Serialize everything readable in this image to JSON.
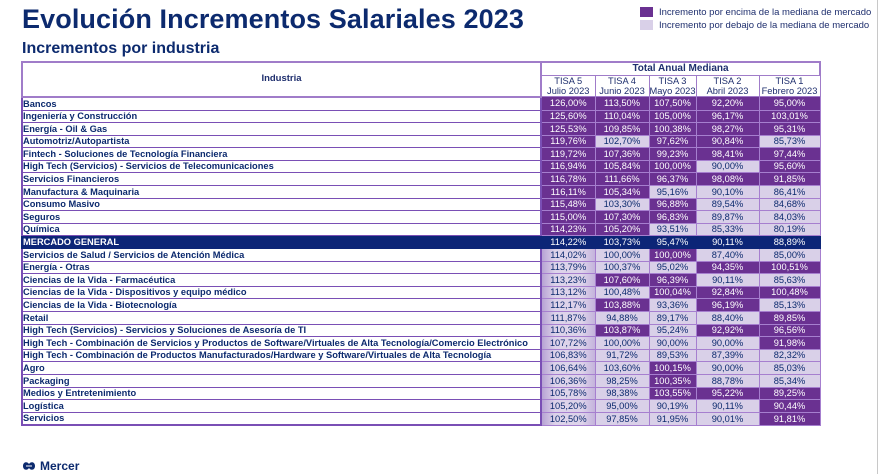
{
  "header": {
    "title": "Evolución Incrementos Salariales 2023",
    "subtitle": "Incrementos por industria"
  },
  "legend": [
    {
      "label": "Incremento por encima de la mediana de mercado",
      "color": "#6a3191"
    },
    {
      "label": "Incremento por debajo de la mediana de mercado",
      "color": "#d9d0e8"
    }
  ],
  "table": {
    "industry_header": "Industria",
    "group_header": "Total Anual Mediana",
    "columns": [
      {
        "line1": "TISA 5",
        "line2": "Julio 2023"
      },
      {
        "line1": "TISA 4",
        "line2": "Junio 2023"
      },
      {
        "line1": "TISA 3",
        "line2": "Mayo 2023"
      },
      {
        "line1": "TISA 2",
        "line2": "Abril 2023"
      },
      {
        "line1": "TISA 1",
        "line2": "Febrero 2023"
      }
    ],
    "rows": [
      {
        "name": "Bancos",
        "values": [
          "126,00%",
          "113,50%",
          "107,50%",
          "92,20%",
          "95,00%"
        ],
        "above": [
          1,
          1,
          1,
          1,
          1
        ]
      },
      {
        "name": "Ingeniería y Construcción",
        "values": [
          "125,60%",
          "110,04%",
          "105,00%",
          "96,17%",
          "103,01%"
        ],
        "above": [
          1,
          1,
          1,
          1,
          1
        ]
      },
      {
        "name": "Energía - Oil & Gas",
        "values": [
          "125,53%",
          "109,85%",
          "100,38%",
          "98,27%",
          "95,31%"
        ],
        "above": [
          1,
          1,
          1,
          1,
          1
        ]
      },
      {
        "name": "Automotriz/Autopartista",
        "values": [
          "119,76%",
          "102,70%",
          "97,62%",
          "90,84%",
          "85,73%"
        ],
        "above": [
          1,
          0,
          1,
          1,
          0
        ]
      },
      {
        "name": "Fintech - Soluciones de Tecnología Financiera",
        "values": [
          "119,72%",
          "107,36%",
          "99,23%",
          "98,41%",
          "97,44%"
        ],
        "above": [
          1,
          1,
          1,
          1,
          1
        ]
      },
      {
        "name": "High Tech (Servicios) - Servicios de Telecomunicaciones",
        "values": [
          "116,94%",
          "105,84%",
          "100,00%",
          "90,00%",
          "95,60%"
        ],
        "above": [
          1,
          1,
          1,
          0,
          1
        ]
      },
      {
        "name": "Servicios Financieros",
        "values": [
          "116,78%",
          "111,66%",
          "96,37%",
          "98,08%",
          "91,85%"
        ],
        "above": [
          1,
          1,
          1,
          1,
          1
        ]
      },
      {
        "name": "Manufactura & Maquinaria",
        "values": [
          "116,11%",
          "105,34%",
          "95,16%",
          "90,10%",
          "86,41%"
        ],
        "above": [
          1,
          1,
          0,
          0,
          0
        ]
      },
      {
        "name": "Consumo Masivo",
        "values": [
          "115,48%",
          "103,30%",
          "96,88%",
          "89,54%",
          "84,68%"
        ],
        "above": [
          1,
          0,
          1,
          0,
          0
        ]
      },
      {
        "name": "Seguros",
        "values": [
          "115,00%",
          "107,30%",
          "96,83%",
          "89,87%",
          "84,03%"
        ],
        "above": [
          1,
          1,
          1,
          0,
          0
        ]
      },
      {
        "name": "Química",
        "values": [
          "114,23%",
          "105,20%",
          "93,51%",
          "85,33%",
          "80,19%"
        ],
        "above": [
          1,
          1,
          0,
          0,
          0
        ]
      },
      {
        "name": "MERCADO GENERAL",
        "values": [
          "114,22%",
          "103,73%",
          "95,47%",
          "90,11%",
          "88,89%"
        ],
        "above": [
          0,
          0,
          0,
          0,
          0
        ],
        "general": true
      },
      {
        "name": "Servicios de Salud / Servicios de Atención Médica",
        "values": [
          "114,02%",
          "100,00%",
          "100,00%",
          "87,40%",
          "85,00%"
        ],
        "above": [
          0,
          0,
          1,
          0,
          0
        ]
      },
      {
        "name": "Energía - Otras",
        "values": [
          "113,79%",
          "100,37%",
          "95,02%",
          "94,35%",
          "100,51%"
        ],
        "above": [
          0,
          0,
          0,
          1,
          1
        ]
      },
      {
        "name": "Ciencias de la Vida - Farmacéutica",
        "values": [
          "113,23%",
          "107,60%",
          "96,39%",
          "90,11%",
          "85,63%"
        ],
        "above": [
          0,
          1,
          1,
          0,
          0
        ]
      },
      {
        "name": "Ciencias de la Vida - Dispositivos y equipo médico",
        "values": [
          "113,12%",
          "100,48%",
          "100,04%",
          "92,84%",
          "100,48%"
        ],
        "above": [
          0,
          0,
          1,
          1,
          1
        ]
      },
      {
        "name": "Ciencias de la Vida - Biotecnología",
        "values": [
          "112,17%",
          "103,88%",
          "93,36%",
          "96,19%",
          "85,13%"
        ],
        "above": [
          0,
          1,
          0,
          1,
          0
        ]
      },
      {
        "name": "Retail",
        "values": [
          "111,87%",
          "94,88%",
          "89,17%",
          "88,40%",
          "89,85%"
        ],
        "above": [
          0,
          0,
          0,
          0,
          1
        ]
      },
      {
        "name": "High Tech (Servicios) - Servicios y Soluciones de Asesoría de TI",
        "values": [
          "110,36%",
          "103,87%",
          "95,24%",
          "92,92%",
          "96,56%"
        ],
        "above": [
          0,
          1,
          0,
          1,
          1
        ]
      },
      {
        "name": "High Tech - Combinación de Servicios y Productos de Software/Virtuales de Alta Tecnología/Comercio Electrónico",
        "values": [
          "107,72%",
          "100,00%",
          "90,00%",
          "90,00%",
          "91,98%"
        ],
        "above": [
          0,
          0,
          0,
          0,
          1
        ]
      },
      {
        "name": "High Tech - Combinación de Productos Manufacturados/Hardware y Software/Virtuales de Alta Tecnología",
        "values": [
          "106,83%",
          "91,72%",
          "89,53%",
          "87,39%",
          "82,32%"
        ],
        "above": [
          0,
          0,
          0,
          0,
          0
        ]
      },
      {
        "name": "Agro",
        "values": [
          "106,64%",
          "103,60%",
          "100,15%",
          "90,00%",
          "85,03%"
        ],
        "above": [
          0,
          0,
          1,
          0,
          0
        ]
      },
      {
        "name": "Packaging",
        "values": [
          "106,36%",
          "98,25%",
          "100,35%",
          "88,78%",
          "85,34%"
        ],
        "above": [
          0,
          0,
          1,
          0,
          0
        ]
      },
      {
        "name": "Medios y Entretenimiento",
        "values": [
          "105,78%",
          "98,38%",
          "103,55%",
          "95,22%",
          "89,25%"
        ],
        "above": [
          0,
          0,
          1,
          1,
          1
        ]
      },
      {
        "name": "Logística",
        "values": [
          "105,20%",
          "95,00%",
          "90,19%",
          "90,11%",
          "90,44%"
        ],
        "above": [
          0,
          0,
          0,
          0,
          1
        ]
      },
      {
        "name": "Servicios",
        "values": [
          "102,50%",
          "97,85%",
          "91,95%",
          "90,01%",
          "91,81%"
        ],
        "above": [
          0,
          0,
          0,
          0,
          1
        ]
      }
    ]
  },
  "footer": {
    "logo_text": "Mercer"
  }
}
